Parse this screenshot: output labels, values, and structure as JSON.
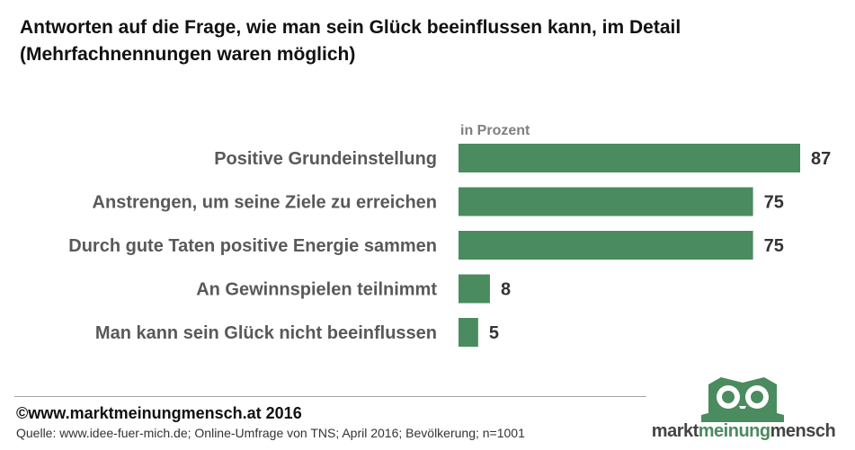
{
  "header": {
    "title_line1": "Antworten auf die Frage, wie man sein Glück beeinflussen kann, im Detail",
    "title_line2": "(Mehrfachnennungen waren möglich)"
  },
  "chart_data": {
    "type": "bar",
    "orientation": "horizontal",
    "unit_label": "in Prozent",
    "categories": [
      "Positive Grundeinstellung",
      "Anstrengen, um seine Ziele zu erreichen",
      "Durch gute Taten positive Energie sammen",
      "An Gewinnspielen teilnimmt",
      "Man kann sein Glück nicht beeinflussen"
    ],
    "values": [
      87,
      75,
      75,
      8,
      5
    ],
    "xlim": [
      0,
      100
    ],
    "grid": false,
    "bar_color": "#4a8b5f"
  },
  "footer": {
    "copyright": "©www.marktmeinungmensch.at 2016",
    "source": "Quelle: www.idee-fuer-mich.de; Online-Umfrage von TNS; April 2016; Bevölkerung; n=1001"
  },
  "logo": {
    "part1": "markt",
    "part2": "meinung",
    "part3": "mensch",
    "color": "#4a8b5f",
    "icon": "owl-icon"
  }
}
